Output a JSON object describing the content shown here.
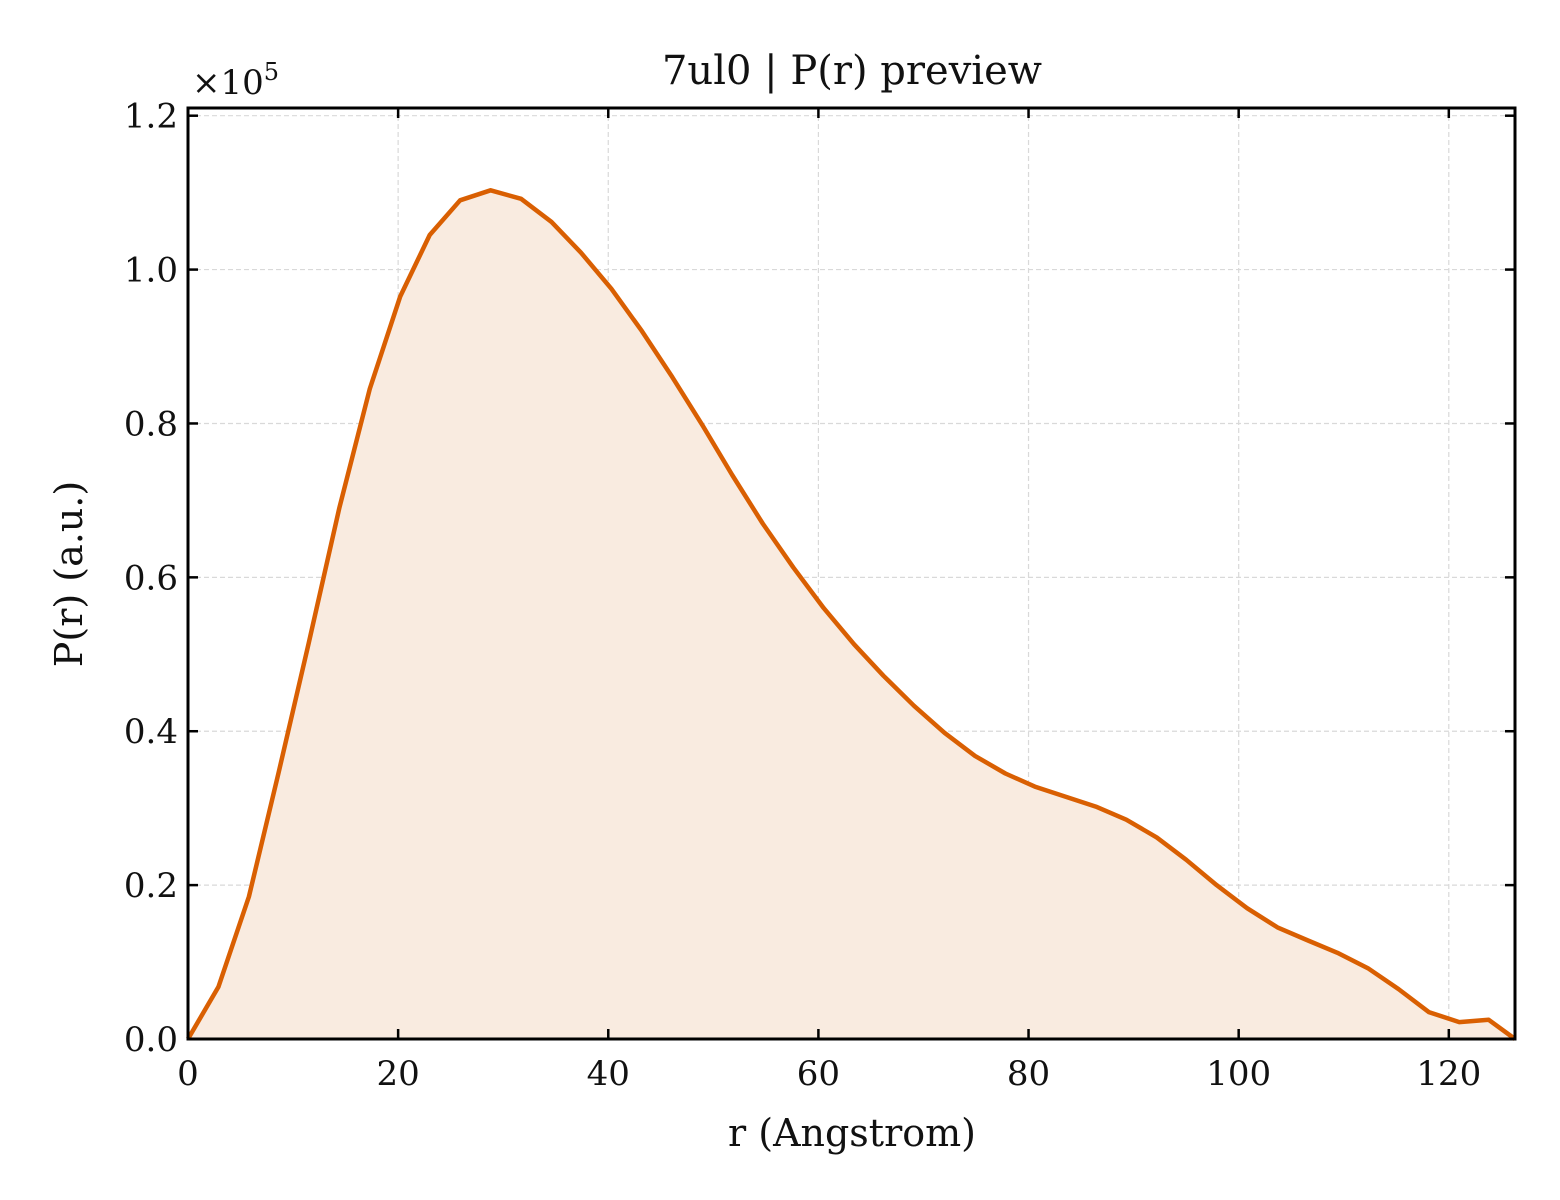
{
  "chart_data": {
    "type": "area",
    "title": "7ul0 | P(r) preview",
    "xlabel": "r (Angstrom)",
    "ylabel": "P(r) (a.u.)",
    "y_multiplier_label": "×10",
    "y_multiplier_exp": "5",
    "xlim": [
      0,
      126.3
    ],
    "ylim": [
      0,
      1.21
    ],
    "xticks": [
      0,
      20,
      40,
      60,
      80,
      100,
      120
    ],
    "xtick_labels": [
      "0",
      "20",
      "40",
      "60",
      "80",
      "100",
      "120"
    ],
    "yticks": [
      0.0,
      0.2,
      0.4,
      0.6,
      0.8,
      1.0,
      1.2
    ],
    "ytick_labels": [
      "0.0",
      "0.2",
      "0.4",
      "0.6",
      "0.8",
      "1.0",
      "1.2"
    ],
    "grid": true,
    "line_color": "#d95f02",
    "fill_color": "#f9ebe0",
    "series": [
      {
        "x": [
          0,
          2.9,
          5.8,
          8.6,
          11.5,
          14.4,
          17.3,
          20.2,
          23.0,
          25.9,
          28.8,
          31.7,
          34.6,
          37.4,
          40.3,
          43.2,
          46.1,
          49.0,
          51.8,
          54.7,
          57.6,
          60.5,
          63.4,
          66.2,
          69.1,
          72.0,
          74.9,
          77.8,
          80.6,
          83.5,
          86.4,
          89.3,
          92.2,
          95.0,
          97.9,
          100.8,
          103.7,
          106.6,
          109.4,
          112.3,
          115.2,
          118.1,
          121.0,
          123.8,
          126.3
        ],
        "y": [
          0.0,
          0.068,
          0.185,
          0.345,
          0.515,
          0.69,
          0.845,
          0.965,
          1.045,
          1.09,
          1.103,
          1.092,
          1.062,
          1.022,
          0.975,
          0.92,
          0.86,
          0.797,
          0.733,
          0.67,
          0.613,
          0.56,
          0.513,
          0.472,
          0.433,
          0.398,
          0.368,
          0.345,
          0.328,
          0.315,
          0.302,
          0.285,
          0.262,
          0.233,
          0.2,
          0.17,
          0.145,
          0.128,
          0.112,
          0.092,
          0.065,
          0.035,
          0.022,
          0.025,
          0.0
        ]
      }
    ]
  }
}
